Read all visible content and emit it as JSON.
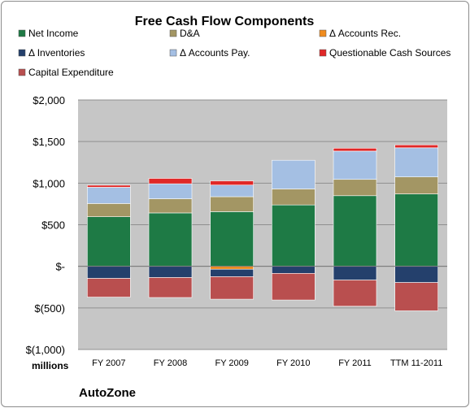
{
  "chart_data": {
    "type": "bar",
    "stacked": true,
    "title": "Free Cash Flow Components",
    "categories": [
      "FY 2007",
      "FY 2008",
      "FY 2009",
      "FY 2010",
      "FY 2011",
      "TTM 11-2011"
    ],
    "ylim": [
      -1000,
      2000
    ],
    "yticks": [
      -1000,
      -500,
      0,
      500,
      1000,
      1500,
      2000
    ],
    "ytick_labels": [
      "$(1,000)",
      "$(500)",
      "$-",
      "$500",
      "$1,000",
      "$1,500",
      "$2,000"
    ],
    "unit_label": "millions",
    "grid": true,
    "legend_position": "top",
    "series": [
      {
        "name": "Net Income",
        "color": "#1e7a45",
        "values": [
          596,
          642,
          657,
          738,
          849,
          870
        ]
      },
      {
        "name": "D&A",
        "color": "#a39664",
        "values": [
          159,
          170,
          180,
          192,
          196,
          205
        ]
      },
      {
        "name": "Δ Accounts Rec.",
        "color": "#f08c1e",
        "values": [
          0,
          0,
          -35,
          0,
          0,
          0
        ]
      },
      {
        "name": "Δ Inventories",
        "color": "#24406c",
        "values": [
          -145,
          -135,
          -90,
          -85,
          -165,
          -195
        ]
      },
      {
        "name": "Δ Accounts Pay.",
        "color": "#a4bfe3",
        "values": [
          195,
          180,
          140,
          345,
          340,
          350
        ]
      },
      {
        "name": "Questionable Cash Sources",
        "color": "#e02828",
        "values": [
          25,
          65,
          50,
          0,
          35,
          35
        ]
      },
      {
        "name": "Capital Expenditure",
        "color": "#b94f4f",
        "values": [
          -225,
          -240,
          -270,
          -320,
          -315,
          -340
        ]
      }
    ]
  },
  "footer": {
    "company": "AutoZone"
  }
}
